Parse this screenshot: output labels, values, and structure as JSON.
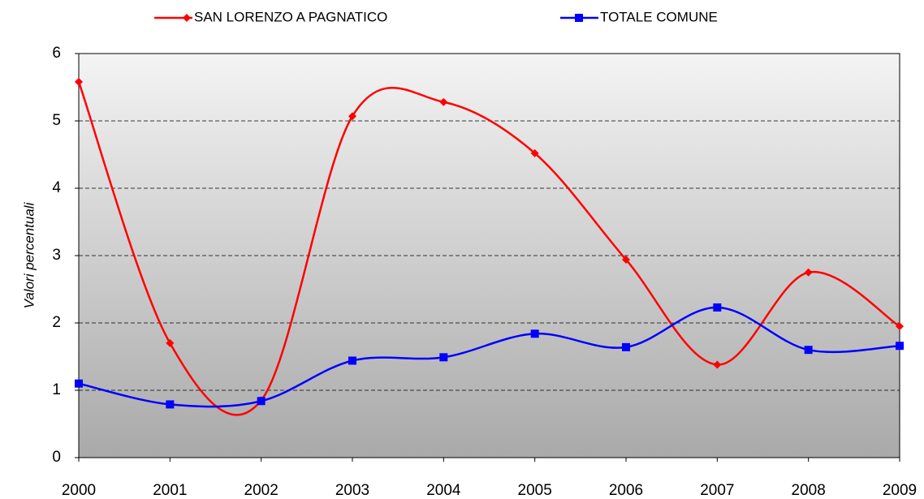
{
  "chart_data": {
    "type": "line",
    "y_label": "Valori percentuali",
    "x": [
      2000,
      2001,
      2002,
      2003,
      2004,
      2005,
      2006,
      2007,
      2008,
      2009
    ],
    "series": [
      {
        "name": "SAN LORENZO A PAGNATICO",
        "color": "#ff0000",
        "marker": "diamond",
        "values": [
          5.58,
          1.7,
          0.85,
          5.07,
          5.28,
          4.52,
          2.94,
          1.38,
          2.75,
          1.95
        ]
      },
      {
        "name": "TOTALE COMUNE",
        "color": "#0000ff",
        "marker": "square",
        "values": [
          1.1,
          0.79,
          0.84,
          1.44,
          1.49,
          1.84,
          1.64,
          2.23,
          1.6,
          1.66
        ]
      }
    ],
    "xlim": [
      2000,
      2009
    ],
    "xticks": [
      2000,
      2001,
      2002,
      2003,
      2004,
      2005,
      2006,
      2007,
      2008,
      2009
    ],
    "ylim": [
      0,
      6
    ],
    "yticks": [
      0,
      1,
      2,
      3,
      4,
      5,
      6
    ],
    "grid": true,
    "smooth": true,
    "legend": "top"
  }
}
